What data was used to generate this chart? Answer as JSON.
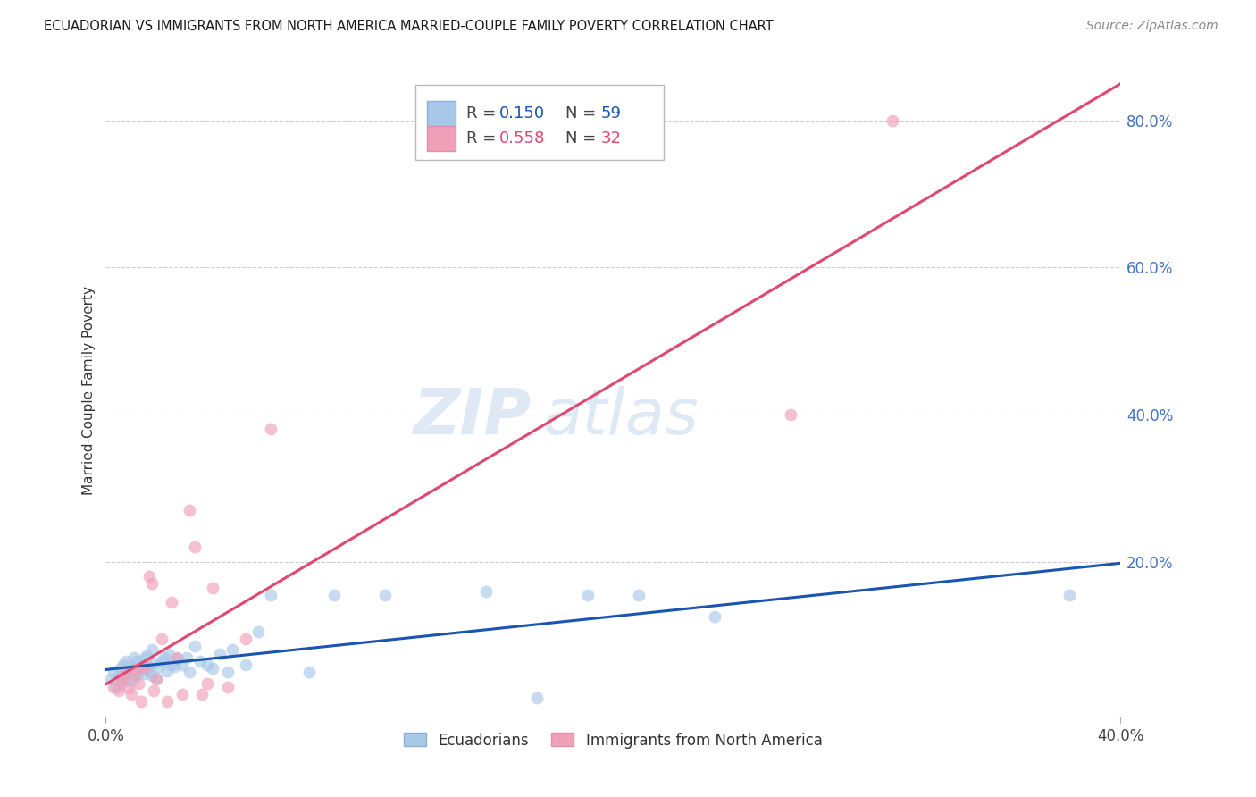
{
  "title": "ECUADORIAN VS IMMIGRANTS FROM NORTH AMERICA MARRIED-COUPLE FAMILY POVERTY CORRELATION CHART",
  "source": "Source: ZipAtlas.com",
  "ylabel": "Married-Couple Family Poverty",
  "xlim": [
    0.0,
    0.4
  ],
  "ylim": [
    -0.01,
    0.875
  ],
  "xtick_vals": [
    0.0,
    0.4
  ],
  "xtick_labels": [
    "0.0%",
    "40.0%"
  ],
  "ytick_vals": [
    0.2,
    0.4,
    0.6,
    0.8
  ],
  "ytick_labels": [
    "20.0%",
    "40.0%",
    "60.0%",
    "80.0%"
  ],
  "blue_R": 0.15,
  "blue_N": 59,
  "pink_R": 0.558,
  "pink_N": 32,
  "blue_label": "Ecuadorians",
  "pink_label": "Immigrants from North America",
  "blue_color": "#a8c8e8",
  "pink_color": "#f0a0b8",
  "blue_line_color": "#1a56b0",
  "pink_line_color": "#e04870",
  "background_color": "#ffffff",
  "watermark_zip": "ZIP",
  "watermark_atlas": "atlas",
  "blue_scatter_x": [
    0.002,
    0.003,
    0.004,
    0.005,
    0.006,
    0.006,
    0.007,
    0.007,
    0.008,
    0.008,
    0.009,
    0.009,
    0.01,
    0.01,
    0.011,
    0.011,
    0.012,
    0.012,
    0.013,
    0.014,
    0.015,
    0.015,
    0.016,
    0.016,
    0.017,
    0.018,
    0.018,
    0.019,
    0.02,
    0.021,
    0.022,
    0.023,
    0.024,
    0.025,
    0.026,
    0.027,
    0.028,
    0.03,
    0.032,
    0.033,
    0.035,
    0.037,
    0.04,
    0.042,
    0.045,
    0.048,
    0.05,
    0.055,
    0.06,
    0.065,
    0.08,
    0.09,
    0.11,
    0.15,
    0.17,
    0.19,
    0.21,
    0.24,
    0.38
  ],
  "blue_scatter_y": [
    0.04,
    0.05,
    0.03,
    0.045,
    0.035,
    0.055,
    0.04,
    0.06,
    0.048,
    0.065,
    0.042,
    0.058,
    0.05,
    0.038,
    0.055,
    0.07,
    0.045,
    0.065,
    0.052,
    0.06,
    0.068,
    0.048,
    0.072,
    0.055,
    0.05,
    0.08,
    0.045,
    0.062,
    0.042,
    0.058,
    0.065,
    0.07,
    0.052,
    0.075,
    0.06,
    0.058,
    0.068,
    0.06,
    0.07,
    0.05,
    0.085,
    0.065,
    0.06,
    0.055,
    0.075,
    0.05,
    0.08,
    0.06,
    0.105,
    0.155,
    0.05,
    0.155,
    0.155,
    0.16,
    0.015,
    0.155,
    0.155,
    0.125,
    0.155
  ],
  "pink_scatter_x": [
    0.003,
    0.005,
    0.006,
    0.007,
    0.008,
    0.009,
    0.01,
    0.011,
    0.012,
    0.013,
    0.014,
    0.015,
    0.016,
    0.017,
    0.018,
    0.019,
    0.02,
    0.022,
    0.024,
    0.026,
    0.028,
    0.03,
    0.033,
    0.035,
    0.038,
    0.04,
    0.042,
    0.048,
    0.055,
    0.065,
    0.27,
    0.31
  ],
  "pink_scatter_y": [
    0.03,
    0.025,
    0.042,
    0.038,
    0.05,
    0.028,
    0.02,
    0.045,
    0.055,
    0.035,
    0.01,
    0.055,
    0.06,
    0.18,
    0.17,
    0.025,
    0.04,
    0.095,
    0.01,
    0.145,
    0.07,
    0.02,
    0.27,
    0.22,
    0.02,
    0.035,
    0.165,
    0.03,
    0.095,
    0.38,
    0.4,
    0.8
  ]
}
